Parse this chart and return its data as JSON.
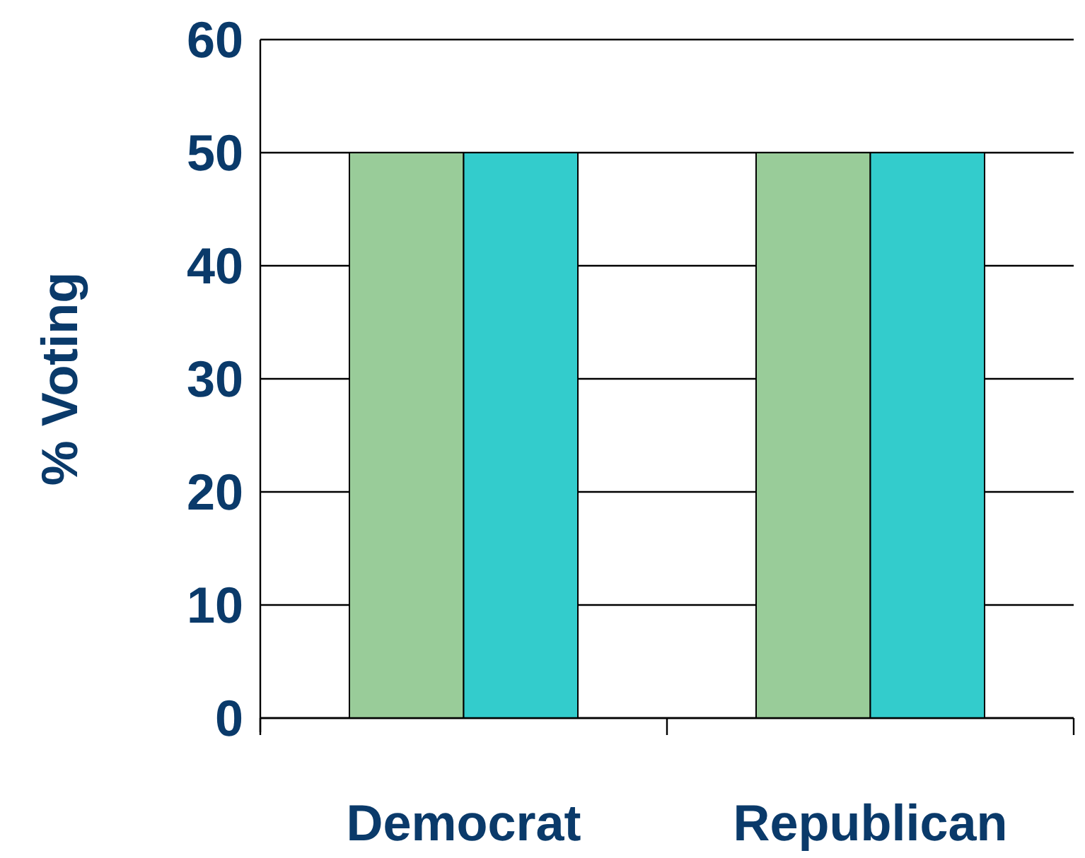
{
  "chart_data": {
    "type": "bar",
    "ylabel": "% Voting",
    "categories": [
      "Democrat",
      "Republican"
    ],
    "series": [
      {
        "color": "#99cc99",
        "values": [
          50,
          50
        ]
      },
      {
        "color": "#33cccc",
        "values": [
          50,
          50
        ]
      }
    ],
    "ylim": [
      0,
      60
    ],
    "yticks": [
      0,
      10,
      20,
      30,
      40,
      50,
      60
    ],
    "grid": "y"
  }
}
